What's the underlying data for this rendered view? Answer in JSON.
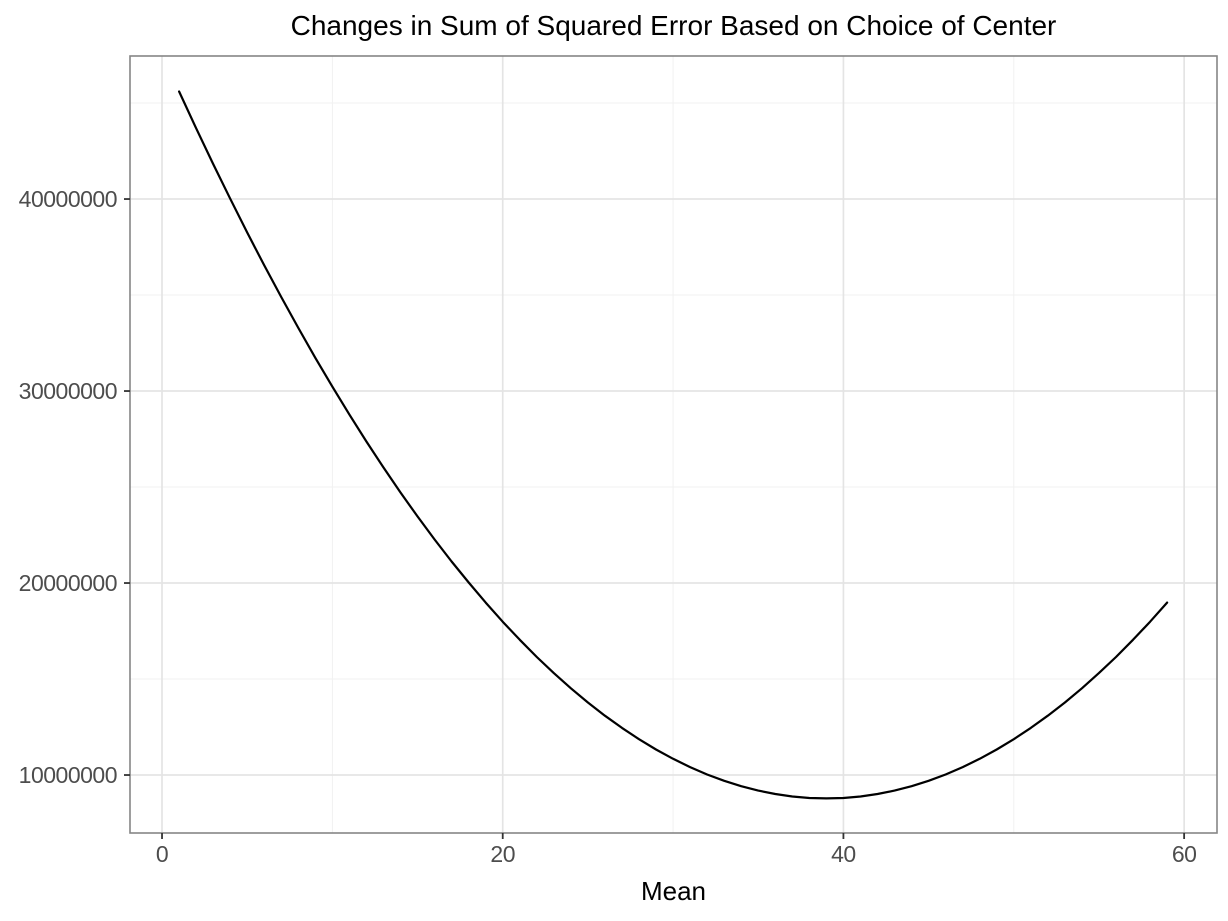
{
  "page": {
    "background": "#ffffff"
  },
  "chart_data": {
    "type": "line",
    "title": "Changes in Sum of Squared Error Based on Choice of Center",
    "xlabel": "Mean",
    "ylabel": "",
    "grid": "on",
    "legend": "none",
    "xlim": [
      -1.88,
      61.93
    ],
    "ylim": [
      6980000,
      47450000
    ],
    "x_ticks": {
      "values": [
        0,
        20,
        40,
        60
      ],
      "labels": [
        "0",
        "20",
        "40",
        "60"
      ]
    },
    "y_ticks": {
      "values": [
        10000000,
        20000000,
        30000000,
        40000000
      ],
      "labels": [
        "10000000",
        "20000000",
        "30000000",
        "40000000"
      ]
    },
    "x_minor": [
      10,
      30,
      50
    ],
    "y_minor": [
      15000000,
      25000000,
      35000000,
      45000000
    ],
    "x": [
      1,
      2,
      3,
      4,
      5,
      6,
      7,
      8,
      9,
      10,
      11,
      12,
      13,
      14,
      15,
      16,
      17,
      18,
      19,
      20,
      21,
      22,
      23,
      24,
      25,
      26,
      27,
      28,
      29,
      30,
      31,
      32,
      33,
      34,
      35,
      36,
      37,
      38,
      39,
      40,
      41,
      42,
      43,
      44,
      45,
      46,
      47,
      48,
      49,
      50,
      51,
      52,
      53,
      54,
      55,
      56,
      57,
      58,
      59
    ],
    "series": [
      {
        "name": "Sum of Squared Error",
        "color": "#000000",
        "values": [
          45602000,
          43689500,
          41828000,
          40017500,
          38258000,
          36549500,
          34892000,
          33285500,
          31730000,
          30225500,
          28772000,
          27369500,
          26018000,
          24717500,
          23468000,
          22269500,
          21122000,
          20025500,
          18980000,
          17985500,
          17042000,
          16149500,
          15308000,
          14517500,
          13778000,
          13089500,
          12452000,
          11865500,
          11330000,
          10845500,
          10412000,
          10029500,
          9698000,
          9417500,
          9188000,
          9009500,
          8882000,
          8805500,
          8780000,
          8805500,
          8882000,
          9009500,
          9188000,
          9417500,
          9698000,
          10029500,
          10412000,
          10845500,
          11330000,
          11865500,
          12452000,
          13089500,
          13778000,
          14517500,
          15308000,
          16149500,
          17042000,
          17985500,
          18980000
        ]
      }
    ],
    "annotations": {
      "minimum_x": 39,
      "minimum_y": 8780000
    },
    "colors": {
      "panel_background": "#ffffff",
      "major_grid": "#e4e4e4",
      "minor_grid": "#f1f1f1",
      "panel_border": "#858585",
      "tick_mark": "#333333",
      "tick_label": "#4d4d4d",
      "title": "#000000",
      "axis_title": "#000000",
      "line": "#000000"
    }
  }
}
